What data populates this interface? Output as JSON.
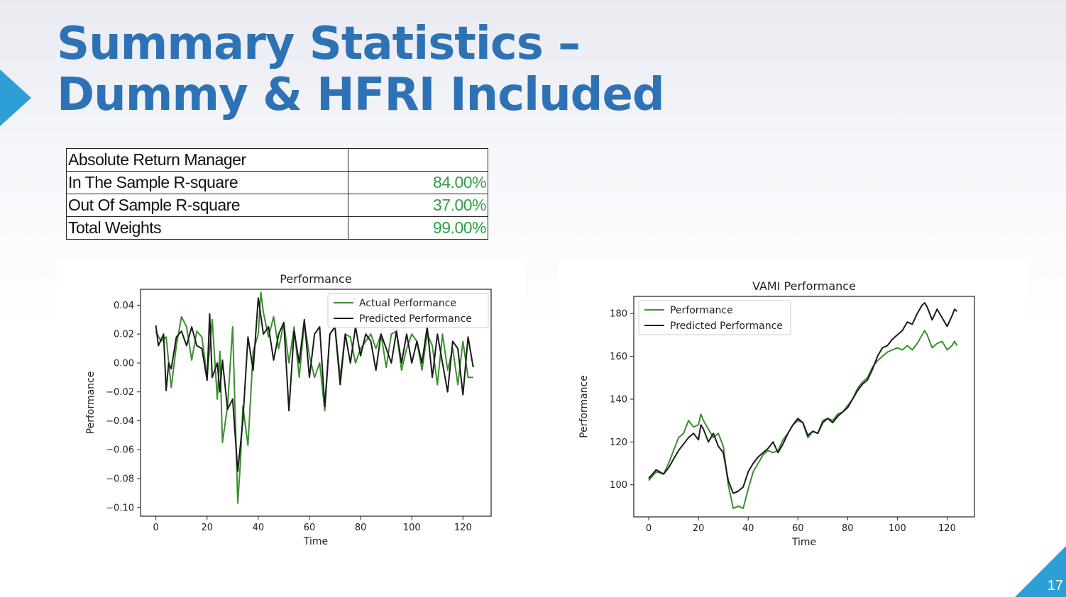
{
  "slide": {
    "title_line1": "Summary Statistics –",
    "title_line2": "Dummy & HFRI Included",
    "page_number": "17",
    "accent_color": "#2e9fd6",
    "title_color": "#2e72b6"
  },
  "table": {
    "rows": [
      {
        "label": "Absolute Return Manager",
        "value": ""
      },
      {
        "label": "In The Sample R-square",
        "value": "84.00%"
      },
      {
        "label": "Out Of Sample R-square",
        "value": "37.00%"
      },
      {
        "label": "Total Weights",
        "value": "99.00%"
      }
    ],
    "value_color": "#2e9f45"
  },
  "chart_data": [
    {
      "type": "line",
      "title": "Performance",
      "xlabel": "Time",
      "ylabel": "Performance",
      "xlim": [
        -6,
        131
      ],
      "ylim": [
        -0.106,
        0.051
      ],
      "xticks": [
        0,
        20,
        40,
        60,
        80,
        100,
        120
      ],
      "xtick_labels": [
        "0",
        "20",
        "40",
        "60",
        "80",
        "100",
        "120"
      ],
      "yticks": [
        0.04,
        0.02,
        0.0,
        -0.02,
        -0.04,
        -0.06,
        -0.08,
        -0.1
      ],
      "ytick_labels": [
        "0.04",
        "0.02",
        "0.00",
        "−0.02",
        "−0.04",
        "−0.06",
        "−0.08",
        "−0.10"
      ],
      "grid": false,
      "legend_position": "top-right",
      "series": [
        {
          "name": "Actual Performance",
          "color": "#3a8f2e",
          "x": [
            0,
            2,
            4,
            6,
            8,
            10,
            12,
            14,
            16,
            18,
            20,
            22,
            24,
            25,
            26,
            28,
            30,
            32,
            33,
            34,
            36,
            38,
            40,
            41,
            42,
            44,
            46,
            48,
            50,
            52,
            54,
            56,
            58,
            60,
            62,
            64,
            66,
            68,
            70,
            72,
            74,
            76,
            78,
            80,
            82,
            84,
            86,
            88,
            90,
            92,
            94,
            96,
            98,
            100,
            102,
            104,
            106,
            108,
            110,
            112,
            114,
            116,
            118,
            120,
            122,
            124
          ],
          "y": [
            0.022,
            0.015,
            0.018,
            -0.017,
            0.012,
            0.032,
            0.025,
            0.002,
            0.022,
            0.018,
            -0.01,
            0.03,
            -0.025,
            0.008,
            -0.055,
            -0.03,
            0.025,
            -0.097,
            -0.07,
            -0.03,
            -0.057,
            0.008,
            0.02,
            0.049,
            0.035,
            0.018,
            0.032,
            0.01,
            0.028,
            0.0,
            0.025,
            -0.01,
            0.028,
            0.005,
            -0.01,
            0.0,
            -0.033,
            0.02,
            0.025,
            -0.01,
            0.02,
            0.018,
            0.0,
            0.01,
            0.015,
            0.02,
            0.01,
            0.02,
            -0.003,
            0.02,
            0.022,
            -0.005,
            0.01,
            0.02,
            0.015,
            -0.005,
            0.02,
            0.012,
            -0.015,
            0.02,
            -0.005,
            0.01,
            -0.015,
            0.015,
            -0.01,
            -0.01
          ]
        },
        {
          "name": "Predicted Performance",
          "color": "#1a1a1a",
          "x": [
            0,
            1,
            3,
            4,
            5,
            6,
            8,
            10,
            12,
            14,
            16,
            18,
            20,
            21,
            22,
            24,
            25,
            26,
            28,
            30,
            32,
            34,
            36,
            38,
            40,
            42,
            44,
            46,
            48,
            50,
            52,
            54,
            56,
            58,
            60,
            62,
            64,
            66,
            68,
            70,
            72,
            74,
            76,
            78,
            80,
            82,
            84,
            86,
            88,
            90,
            92,
            94,
            96,
            98,
            100,
            102,
            104,
            106,
            108,
            110,
            112,
            114,
            116,
            118,
            120,
            122,
            124
          ],
          "y": [
            0.026,
            0.012,
            0.02,
            -0.019,
            0.0,
            -0.004,
            0.018,
            0.022,
            0.012,
            0.025,
            0.012,
            0.01,
            -0.012,
            0.034,
            -0.01,
            0.0,
            -0.02,
            0.002,
            -0.032,
            -0.025,
            -0.075,
            -0.04,
            0.018,
            -0.005,
            0.045,
            0.02,
            0.025,
            0.002,
            0.02,
            0.028,
            -0.033,
            0.022,
            0.0,
            0.03,
            -0.01,
            0.02,
            0.025,
            -0.03,
            0.02,
            0.025,
            -0.015,
            0.02,
            0.0,
            0.025,
            0.005,
            0.02,
            0.015,
            -0.005,
            0.02,
            0.01,
            0.0,
            0.022,
            0.0,
            0.02,
            0.0,
            0.015,
            0.0,
            0.025,
            -0.01,
            0.02,
            0.0,
            -0.02,
            0.015,
            0.01,
            -0.022,
            0.018,
            -0.003
          ]
        }
      ]
    },
    {
      "type": "line",
      "title": "VAMI Performance",
      "xlabel": "Time",
      "ylabel": "Performance",
      "xlim": [
        -6,
        131
      ],
      "ylim": [
        85,
        188
      ],
      "xticks": [
        0,
        20,
        40,
        60,
        80,
        100,
        120
      ],
      "xtick_labels": [
        "0",
        "20",
        "40",
        "60",
        "80",
        "100",
        "120"
      ],
      "yticks": [
        100,
        120,
        140,
        160,
        180
      ],
      "ytick_labels": [
        "100",
        "120",
        "140",
        "160",
        "180"
      ],
      "grid": false,
      "legend_position": "top-left",
      "series": [
        {
          "name": "Performance",
          "color": "#3a8f2e",
          "x": [
            0,
            3,
            6,
            8,
            10,
            12,
            14,
            16,
            18,
            20,
            21,
            22,
            24,
            26,
            28,
            30,
            32,
            34,
            36,
            38,
            40,
            42,
            44,
            46,
            48,
            50,
            52,
            54,
            56,
            58,
            60,
            62,
            64,
            66,
            68,
            70,
            72,
            74,
            76,
            78,
            80,
            82,
            84,
            86,
            88,
            90,
            92,
            94,
            96,
            98,
            100,
            102,
            104,
            106,
            108,
            110,
            111,
            112,
            114,
            116,
            118,
            120,
            122,
            123,
            124
          ],
          "y": [
            102,
            106,
            105,
            110,
            116,
            122,
            124,
            130,
            127,
            128,
            133,
            130,
            126,
            122,
            124,
            118,
            100,
            89,
            90,
            89,
            98,
            106,
            110,
            114,
            116,
            115,
            116,
            121,
            124,
            128,
            130,
            129,
            122,
            125,
            124,
            130,
            131,
            130,
            133,
            134,
            137,
            140,
            145,
            148,
            150,
            155,
            158,
            160,
            162,
            163,
            164,
            163,
            165,
            163,
            166,
            170,
            172,
            170,
            164,
            166,
            167,
            163,
            165,
            167,
            165
          ]
        },
        {
          "name": "Predicted Performance",
          "color": "#1a1a1a",
          "x": [
            0,
            3,
            6,
            8,
            10,
            12,
            14,
            16,
            18,
            20,
            21,
            22,
            24,
            26,
            28,
            30,
            32,
            34,
            36,
            38,
            40,
            42,
            44,
            46,
            48,
            50,
            52,
            54,
            56,
            58,
            60,
            62,
            64,
            66,
            68,
            70,
            72,
            74,
            76,
            78,
            80,
            82,
            84,
            86,
            88,
            90,
            92,
            94,
            96,
            98,
            100,
            102,
            104,
            106,
            108,
            110,
            111,
            112,
            114,
            116,
            118,
            120,
            122,
            123,
            124
          ],
          "y": [
            103,
            107,
            105,
            108,
            112,
            116,
            119,
            122,
            124,
            121,
            128,
            126,
            120,
            124,
            118,
            115,
            102,
            96,
            97,
            99,
            106,
            110,
            113,
            115,
            117,
            120,
            115,
            119,
            124,
            128,
            131,
            129,
            123,
            125,
            124,
            129,
            131,
            129,
            132,
            134,
            136,
            140,
            144,
            147,
            149,
            154,
            160,
            164,
            165,
            168,
            170,
            172,
            176,
            175,
            180,
            184,
            185,
            183,
            177,
            182,
            178,
            174,
            179,
            182,
            181
          ]
        }
      ]
    }
  ]
}
